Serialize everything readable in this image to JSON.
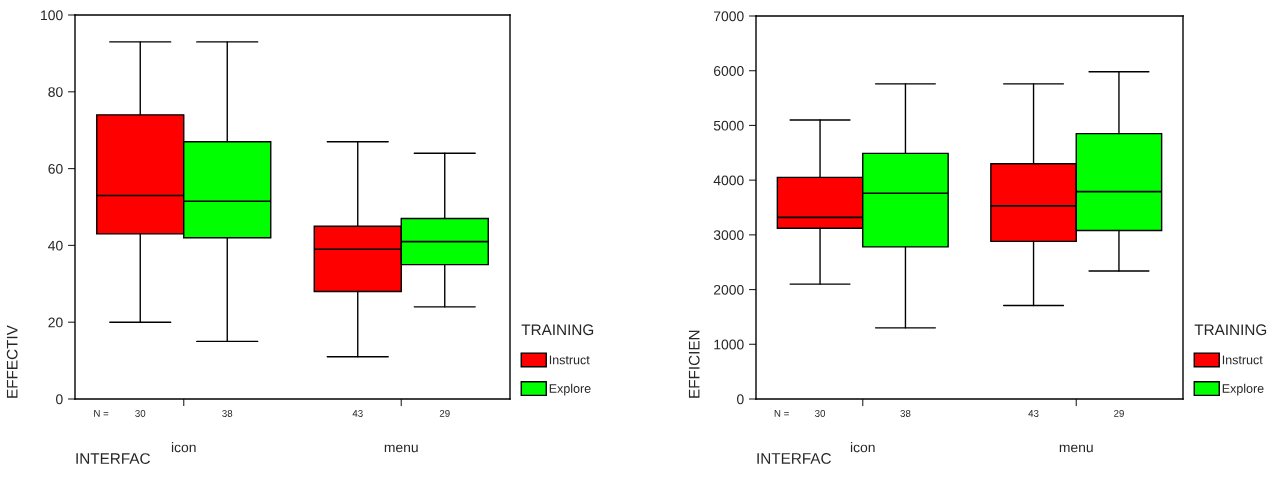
{
  "chart_data": [
    {
      "type": "box",
      "categories": [
        "icon",
        "menu"
      ],
      "xlabel": "INTERFAC",
      "ylabel": "EFFECTIV",
      "legend_title": "TRAINING",
      "legend": "right",
      "grid": false,
      "ylim": [
        0,
        100
      ],
      "yticks": [
        0,
        20,
        40,
        60,
        80,
        100
      ],
      "series": [
        {
          "name": "Instruct",
          "color": "#ff0000",
          "boxes": [
            {
              "low": 20,
              "q1": 43,
              "median": 53,
              "q3": 74,
              "high": 93
            },
            {
              "low": 11,
              "q1": 28,
              "median": 39,
              "q3": 45,
              "high": 67
            }
          ]
        },
        {
          "name": "Explore",
          "color": "#00ff00",
          "boxes": [
            {
              "low": 15,
              "q1": 42,
              "median": 51.5,
              "q3": 67,
              "high": 93
            },
            {
              "low": 24,
              "q1": 35,
              "median": 41,
              "q3": 47,
              "high": 64
            }
          ]
        }
      ],
      "annotations": [
        "N =",
        "30",
        "38",
        "43",
        "29"
      ]
    },
    {
      "type": "box",
      "categories": [
        "icon",
        "menu"
      ],
      "xlabel": "INTERFAC",
      "ylabel": "EFFICIEN",
      "legend_title": "TRAINING",
      "legend": "right",
      "grid": false,
      "ylim": [
        0,
        7000
      ],
      "yticks": [
        0,
        1000,
        2000,
        3000,
        4000,
        5000,
        6000,
        7000
      ],
      "series": [
        {
          "name": "Instruct",
          "color": "#ff0000",
          "boxes": [
            {
              "low": 2100,
              "q1": 3120,
              "median": 3320,
              "q3": 4050,
              "high": 5100
            },
            {
              "low": 1710,
              "q1": 2880,
              "median": 3530,
              "q3": 4300,
              "high": 5760
            }
          ]
        },
        {
          "name": "Explore",
          "color": "#00ff00",
          "boxes": [
            {
              "low": 1300,
              "q1": 2780,
              "median": 3760,
              "q3": 4490,
              "high": 5760
            },
            {
              "low": 2340,
              "q1": 3080,
              "median": 3790,
              "q3": 4850,
              "high": 5980
            }
          ]
        }
      ],
      "annotations": [
        "N =",
        "30",
        "38",
        "43",
        "29"
      ]
    }
  ]
}
